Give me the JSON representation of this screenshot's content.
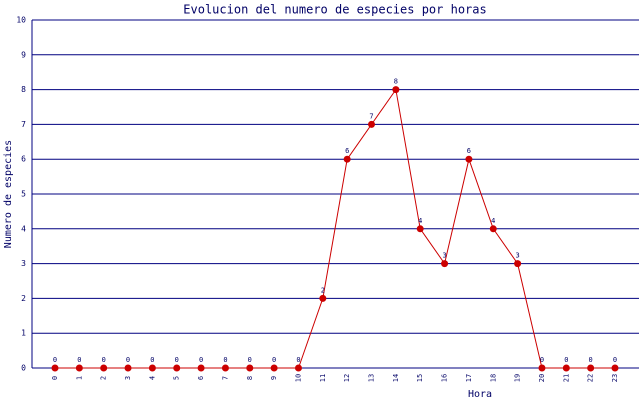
{
  "chart_data": {
    "type": "line",
    "title": "Evolucion del numero de especies por horas",
    "x_label": "Hora",
    "y_label": "Numero de especies",
    "categories": [
      "0",
      "1",
      "2",
      "3",
      "4",
      "5",
      "6",
      "7",
      "8",
      "9",
      "10",
      "11",
      "12",
      "13",
      "14",
      "15",
      "16",
      "17",
      "18",
      "19",
      "20",
      "21",
      "22",
      "23"
    ],
    "values": [
      0,
      0,
      0,
      0,
      0,
      0,
      0,
      0,
      0,
      0,
      0,
      2,
      6,
      7,
      8,
      4,
      3,
      6,
      4,
      3,
      0,
      0,
      0,
      0
    ],
    "color": "#cc0000",
    "grid": true,
    "data_labels": true,
    "ylim": [
      0,
      10
    ],
    "yticks": [
      0,
      1,
      2,
      3,
      4,
      5,
      6,
      7,
      8,
      9,
      10
    ]
  }
}
